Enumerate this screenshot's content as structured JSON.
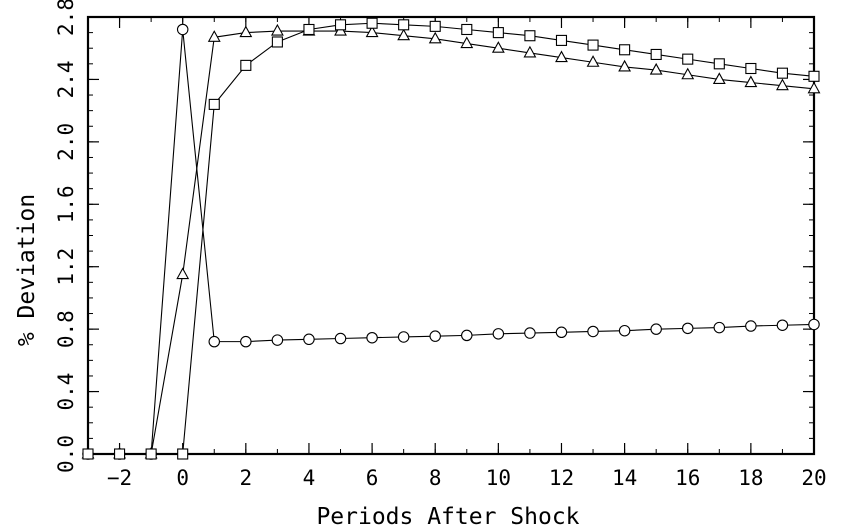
{
  "chart_data": {
    "type": "line",
    "title": "",
    "xlabel": "Periods After Shock",
    "ylabel": "% Deviation",
    "xlim": [
      -3,
      20
    ],
    "ylim": [
      0,
      2.8
    ],
    "x_ticks": [
      -2,
      0,
      2,
      4,
      6,
      8,
      10,
      12,
      14,
      16,
      18,
      20
    ],
    "x_tick_labels": [
      "−2",
      "0",
      "2",
      "4",
      "6",
      "8",
      "10",
      "12",
      "14",
      "16",
      "18",
      "20"
    ],
    "y_ticks": [
      0,
      0.4,
      0.8,
      1.2,
      1.6,
      2.0,
      2.4,
      2.8
    ],
    "y_tick_labels": [
      "0.0",
      "0.4",
      "0.8",
      "1.2",
      "1.6",
      "2.0",
      "2.4",
      "2.8"
    ],
    "grid": false,
    "legend": "none",
    "x": [
      -3,
      -2,
      -1,
      0,
      1,
      2,
      3,
      4,
      5,
      6,
      7,
      8,
      9,
      10,
      11,
      12,
      13,
      14,
      15,
      16,
      17,
      18,
      19,
      20
    ],
    "series": [
      {
        "marker": "circle",
        "values": [
          0,
          0,
          0,
          2.72,
          0.72,
          0.72,
          0.73,
          0.735,
          0.74,
          0.745,
          0.75,
          0.755,
          0.76,
          0.77,
          0.775,
          0.78,
          0.785,
          0.79,
          0.8,
          0.805,
          0.81,
          0.82,
          0.825,
          0.83
        ]
      },
      {
        "marker": "triangle",
        "values": [
          0,
          0,
          0,
          1.15,
          2.67,
          2.7,
          2.71,
          2.71,
          2.71,
          2.7,
          2.68,
          2.66,
          2.63,
          2.6,
          2.57,
          2.54,
          2.51,
          2.48,
          2.46,
          2.43,
          2.4,
          2.38,
          2.36,
          2.34
        ]
      },
      {
        "marker": "square",
        "values": [
          0,
          0,
          0,
          0,
          2.24,
          2.49,
          2.64,
          2.72,
          2.75,
          2.76,
          2.75,
          2.74,
          2.72,
          2.7,
          2.68,
          2.65,
          2.62,
          2.59,
          2.56,
          2.53,
          2.5,
          2.47,
          2.44,
          2.42
        ]
      }
    ]
  }
}
